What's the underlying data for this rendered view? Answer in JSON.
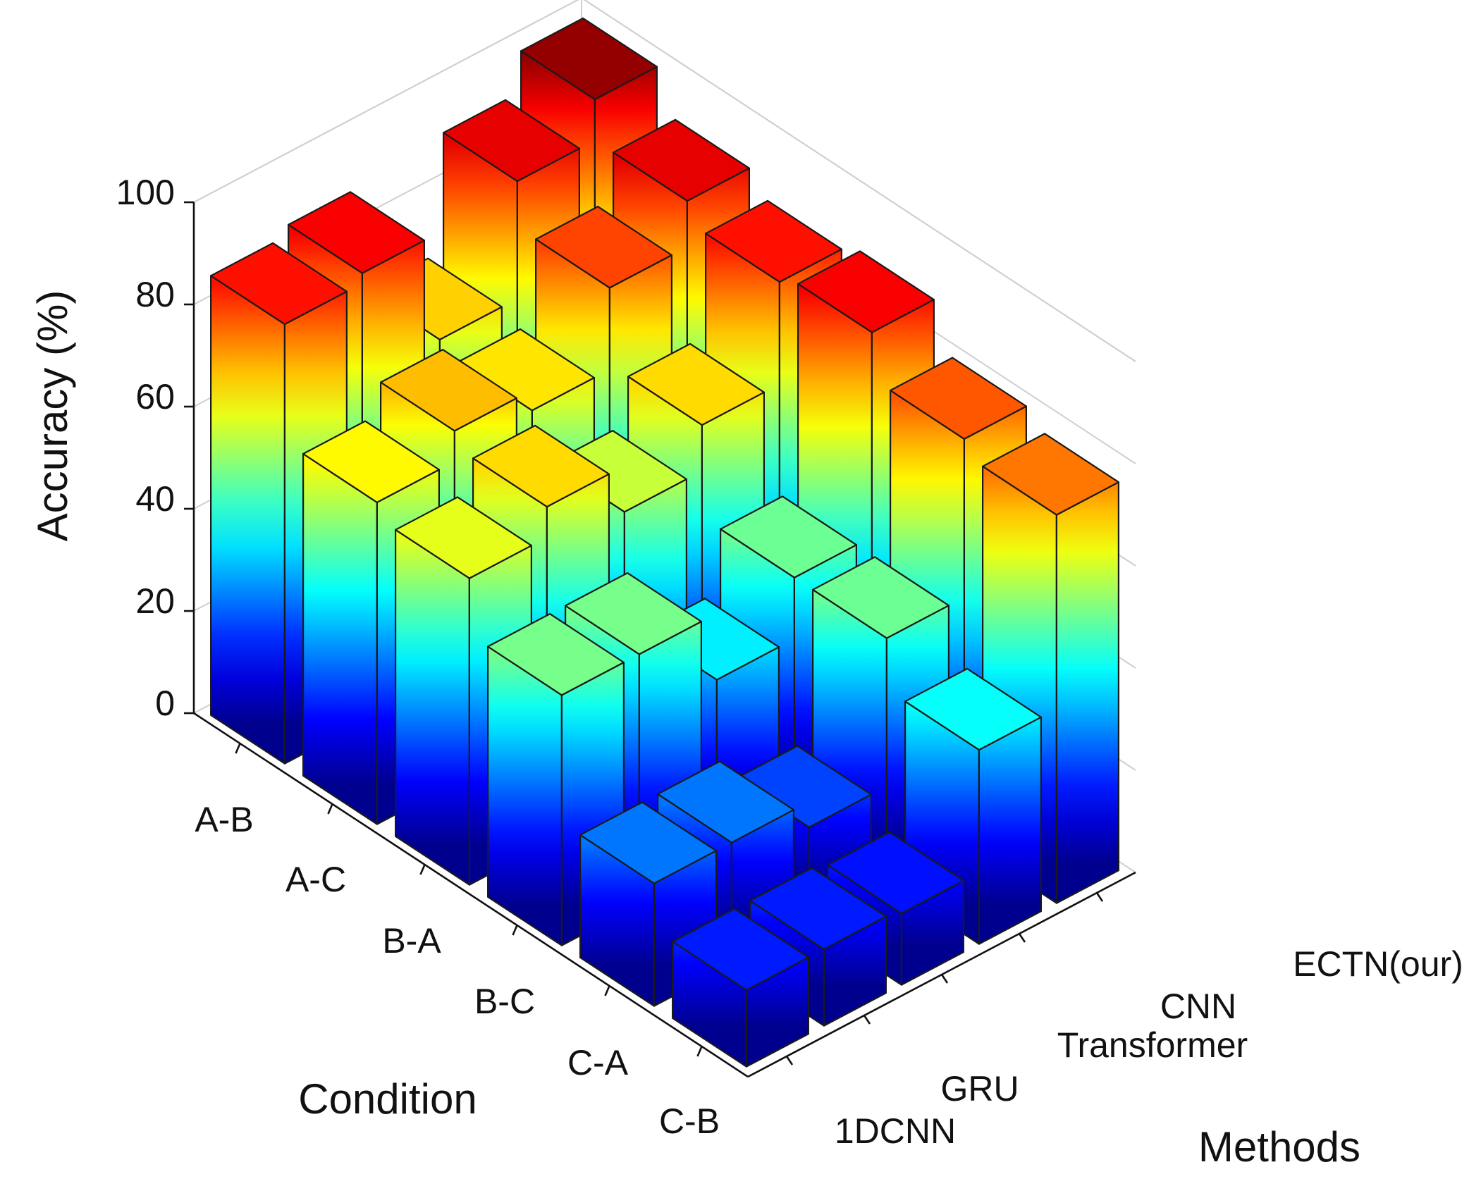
{
  "chart_data": {
    "type": "bar3d",
    "title": "",
    "zlabel": "Accuracy (%)",
    "xlabel": "Condition",
    "ylabel": "Methods",
    "zlim": [
      0,
      100
    ],
    "zticks": [
      "0",
      "20",
      "40",
      "60",
      "80",
      "100"
    ],
    "conditions": [
      "A-B",
      "A-C",
      "B-A",
      "B-C",
      "C-A",
      "C-B"
    ],
    "methods": [
      "1DCNN",
      "GRU",
      "Transformer",
      "CNN",
      "ECTN(our)"
    ],
    "series": [
      {
        "name": "1DCNN",
        "values": [
          86,
          63,
          60,
          49,
          24,
          15
        ]
      },
      {
        "name": "GRU",
        "values": [
          88,
          69,
          66,
          49,
          24,
          15
        ]
      },
      {
        "name": "Transformer",
        "values": [
          67,
          65,
          57,
          36,
          19,
          14
        ]
      },
      {
        "name": "CNN",
        "values": [
          90,
          81,
          66,
          48,
          48,
          38
        ]
      },
      {
        "name": "ECTN(our)",
        "values": [
          98,
          90,
          86,
          88,
          79,
          76
        ]
      }
    ],
    "colormap": [
      "#00008f",
      "#0000ff",
      "#0080ff",
      "#00ffff",
      "#80ff80",
      "#ffff00",
      "#ff8000",
      "#ff0000",
      "#800000"
    ]
  }
}
